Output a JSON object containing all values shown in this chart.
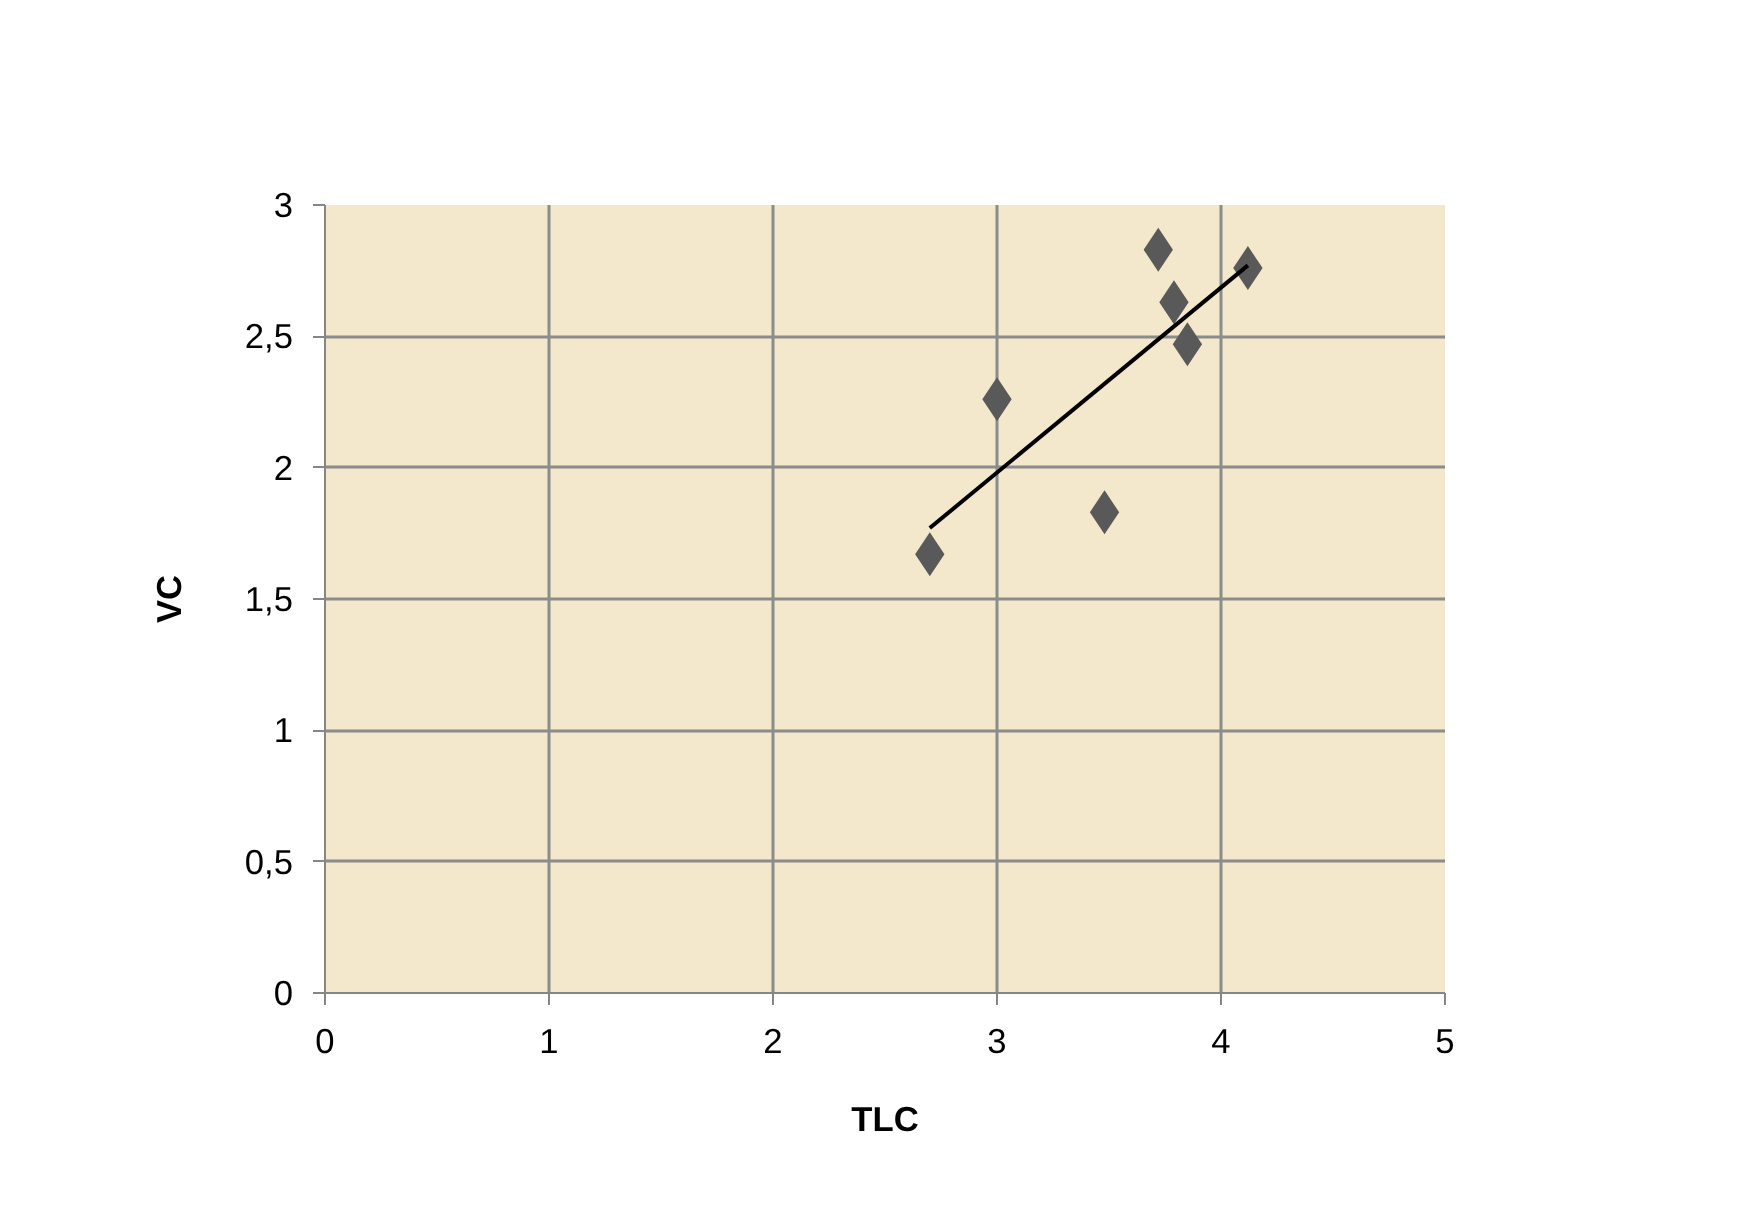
{
  "chart_data": {
    "type": "scatter",
    "xlabel": "TLC",
    "ylabel": "VC",
    "x": [
      2.7,
      3.0,
      3.48,
      3.72,
      3.79,
      3.85,
      4.12
    ],
    "series": [
      {
        "color": "#595959",
        "values": [
          1.67,
          2.26,
          1.83,
          2.83,
          2.63,
          2.47,
          2.76
        ],
        "marker": "diamond"
      },
      {
        "type": "line",
        "color": "#000000",
        "x": [
          2.7,
          4.12
        ],
        "values": [
          1.77,
          2.77
        ]
      }
    ],
    "xlim": [
      0,
      5
    ],
    "xticks": [
      0,
      1,
      2,
      3,
      4,
      5
    ],
    "ylim": [
      0,
      3
    ],
    "yticks": [
      0,
      {
        "value": 0.5,
        "label": "0,5"
      },
      1,
      {
        "value": 1.5,
        "label": "1,5"
      },
      2,
      {
        "value": 2.5,
        "label": "2,5"
      },
      3
    ],
    "grid": true
  }
}
